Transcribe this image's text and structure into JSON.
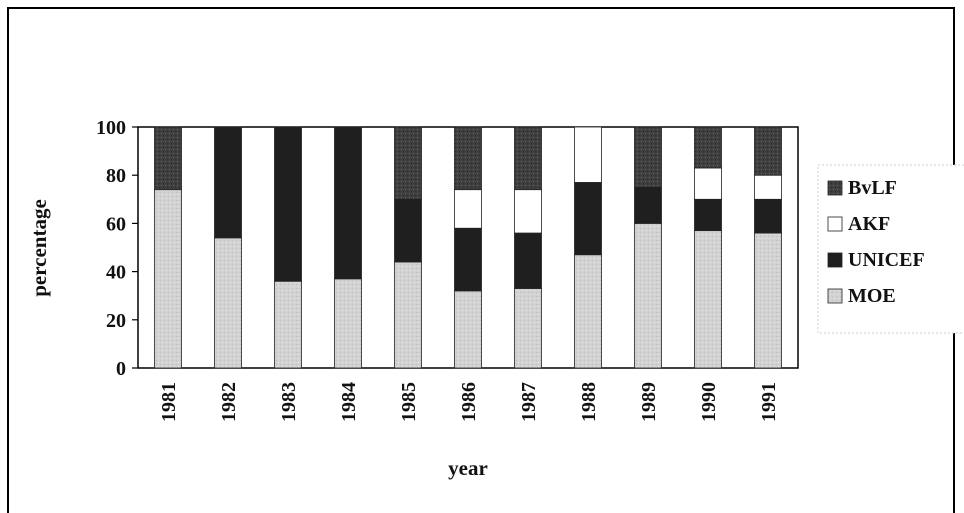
{
  "chart_data": {
    "type": "bar",
    "stacked": true,
    "percent_stacked": true,
    "categories": [
      "1981",
      "1982",
      "1983",
      "1984",
      "1985",
      "1986",
      "1987",
      "1988",
      "1989",
      "1990",
      "1991"
    ],
    "series": [
      {
        "name": "MOE",
        "values": [
          74,
          54,
          36,
          37,
          44,
          32,
          33,
          47,
          60,
          57,
          56
        ],
        "color": "#d4d4d4"
      },
      {
        "name": "UNICEF",
        "values": [
          0,
          46,
          64,
          63,
          26,
          26,
          23,
          30,
          15,
          13,
          14
        ],
        "color": "#1f1f1f"
      },
      {
        "name": "AKF",
        "values": [
          0,
          0,
          0,
          0,
          0,
          16,
          18,
          23,
          0,
          13,
          10
        ],
        "color": "#ffffff"
      },
      {
        "name": "BvLF",
        "values": [
          26,
          0,
          0,
          0,
          30,
          26,
          26,
          0,
          25,
          17,
          20
        ],
        "color": "#4a4a4a"
      }
    ],
    "legend_order": [
      "BvLF",
      "AKF",
      "UNICEF",
      "MOE"
    ],
    "xlabel": "year",
    "ylabel": "percentage",
    "ylim": [
      0,
      100
    ],
    "yticks": [
      0,
      20,
      40,
      60,
      80,
      100
    ],
    "grid": false,
    "legend_position": "right"
  }
}
